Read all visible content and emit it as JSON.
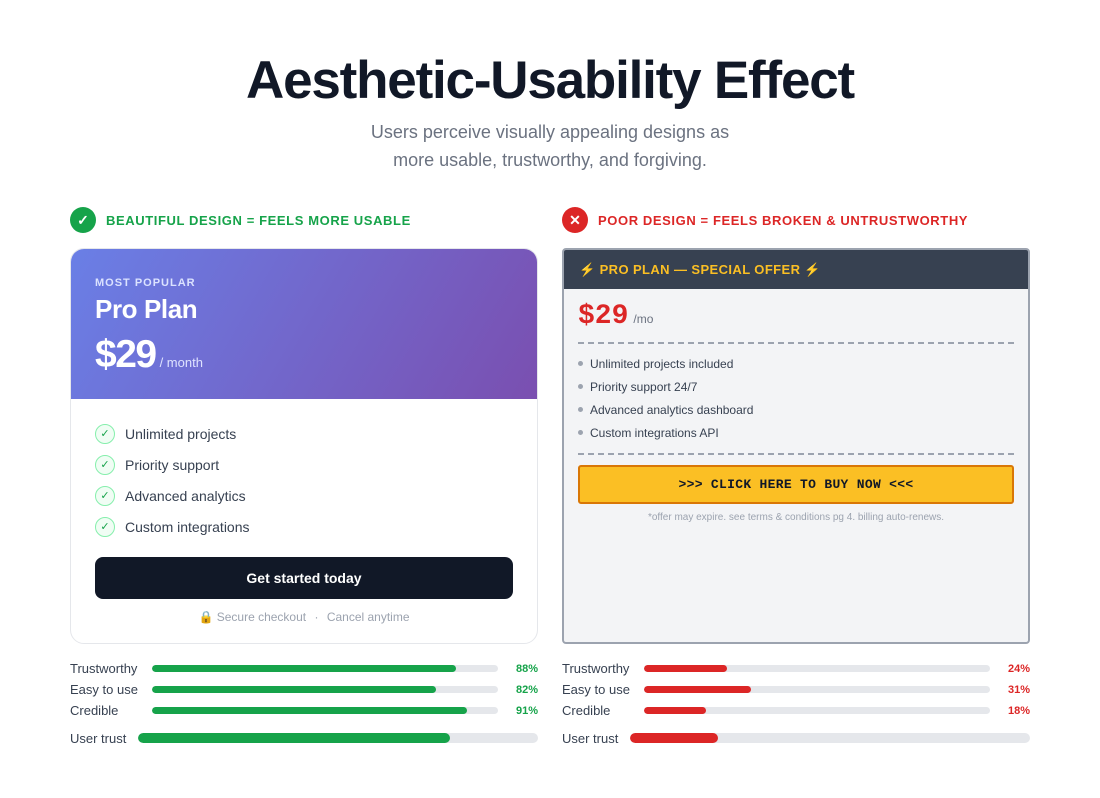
{
  "header": {
    "title": "Aesthetic-Usability Effect",
    "subtitle_line1": "Users perceive visually appealing designs as",
    "subtitle_line2": "more usable, trustworthy, and forgiving."
  },
  "good": {
    "badge": "✓",
    "heading": "BEAUTIFUL DESIGN = FEELS MORE USABLE",
    "eyebrow": "MOST POPULAR",
    "plan": "Pro Plan",
    "price": "$29",
    "period": "/ month",
    "features": [
      "Unlimited projects",
      "Priority support",
      "Advanced analytics",
      "Custom integrations"
    ],
    "cta": "Get started today",
    "secure_left": "🔒 Secure checkout",
    "secure_sep": "·",
    "secure_right": "Cancel anytime",
    "metrics": [
      {
        "label": "Trustworthy",
        "value": 88,
        "display": "88%"
      },
      {
        "label": "Easy to use",
        "value": 82,
        "display": "82%"
      },
      {
        "label": "Credible",
        "value": 91,
        "display": "91%"
      }
    ],
    "trust_label": "User trust",
    "trust_value": 78
  },
  "bad": {
    "badge": "✕",
    "heading": "POOR DESIGN = FEELS BROKEN & UNTRUSTWORTHY",
    "banner": "⚡ PRO PLAN — SPECIAL OFFER ⚡",
    "price": "$29",
    "period": "/mo",
    "features": [
      "Unlimited projects included",
      "Priority support 24/7",
      "Advanced analytics dashboard",
      "Custom integrations API"
    ],
    "cta": ">>> CLICK HERE TO BUY NOW <<<",
    "fine_print": "*offer may expire. see terms & conditions pg 4. billing auto-renews.",
    "metrics": [
      {
        "label": "Trustworthy",
        "value": 24,
        "display": "24%"
      },
      {
        "label": "Easy to use",
        "value": 31,
        "display": "31%"
      },
      {
        "label": "Credible",
        "value": 18,
        "display": "18%"
      }
    ],
    "trust_label": "User trust",
    "trust_value": 22
  },
  "colors": {
    "good_accent": "#16a34a",
    "bad_accent": "#dc2626",
    "gradient_start": "#6a7fe6",
    "gradient_end": "#7a4fb0",
    "bad_banner": "#374151",
    "bad_cta": "#fbbf24"
  }
}
